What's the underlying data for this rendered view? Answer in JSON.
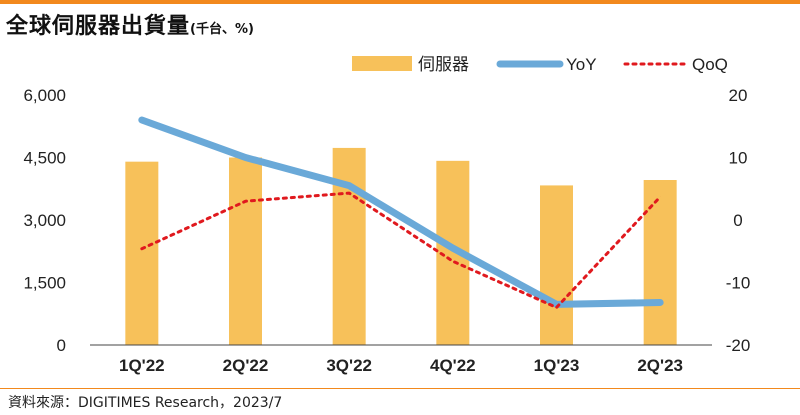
{
  "title": "全球伺服器出貨量",
  "title_unit": "(千台、%)",
  "source": "資料來源：DIGITIMES Research，2023/7",
  "colors": {
    "accent_rule": "#f2891d",
    "bar": "#f7c15a",
    "yoy_line": "#6aa9d8",
    "qoq_line": "#e0191e",
    "axis_line": "#444444"
  },
  "chart_data": {
    "type": "bar",
    "categories": [
      "1Q'22",
      "2Q'22",
      "3Q'22",
      "4Q'22",
      "1Q'23",
      "2Q'23"
    ],
    "series": [
      {
        "name": "伺服器",
        "type": "bar",
        "axis": "left",
        "values": [
          4400,
          4500,
          4730,
          4420,
          3830,
          3960
        ]
      },
      {
        "name": "YoY",
        "type": "line",
        "axis": "right",
        "values": [
          16.0,
          10.0,
          5.5,
          -4.5,
          -13.5,
          -13.2
        ]
      },
      {
        "name": "QoQ",
        "type": "line",
        "axis": "right",
        "style": "dotted",
        "values": [
          -4.6,
          3.0,
          4.3,
          -6.6,
          -14.0,
          3.7
        ]
      }
    ],
    "y_left": {
      "min": 0,
      "max": 6000,
      "ticks": [
        0,
        1500,
        3000,
        4500,
        6000
      ],
      "tick_labels": [
        "0",
        "1,500",
        "3,000",
        "4,500",
        "6,000"
      ]
    },
    "y_right": {
      "min": -20,
      "max": 20,
      "ticks": [
        -20,
        -10,
        0,
        10,
        20
      ],
      "tick_labels": [
        "-20",
        "-10",
        "0",
        "10",
        "20"
      ]
    },
    "legend_position": "top-right",
    "grid": false
  }
}
